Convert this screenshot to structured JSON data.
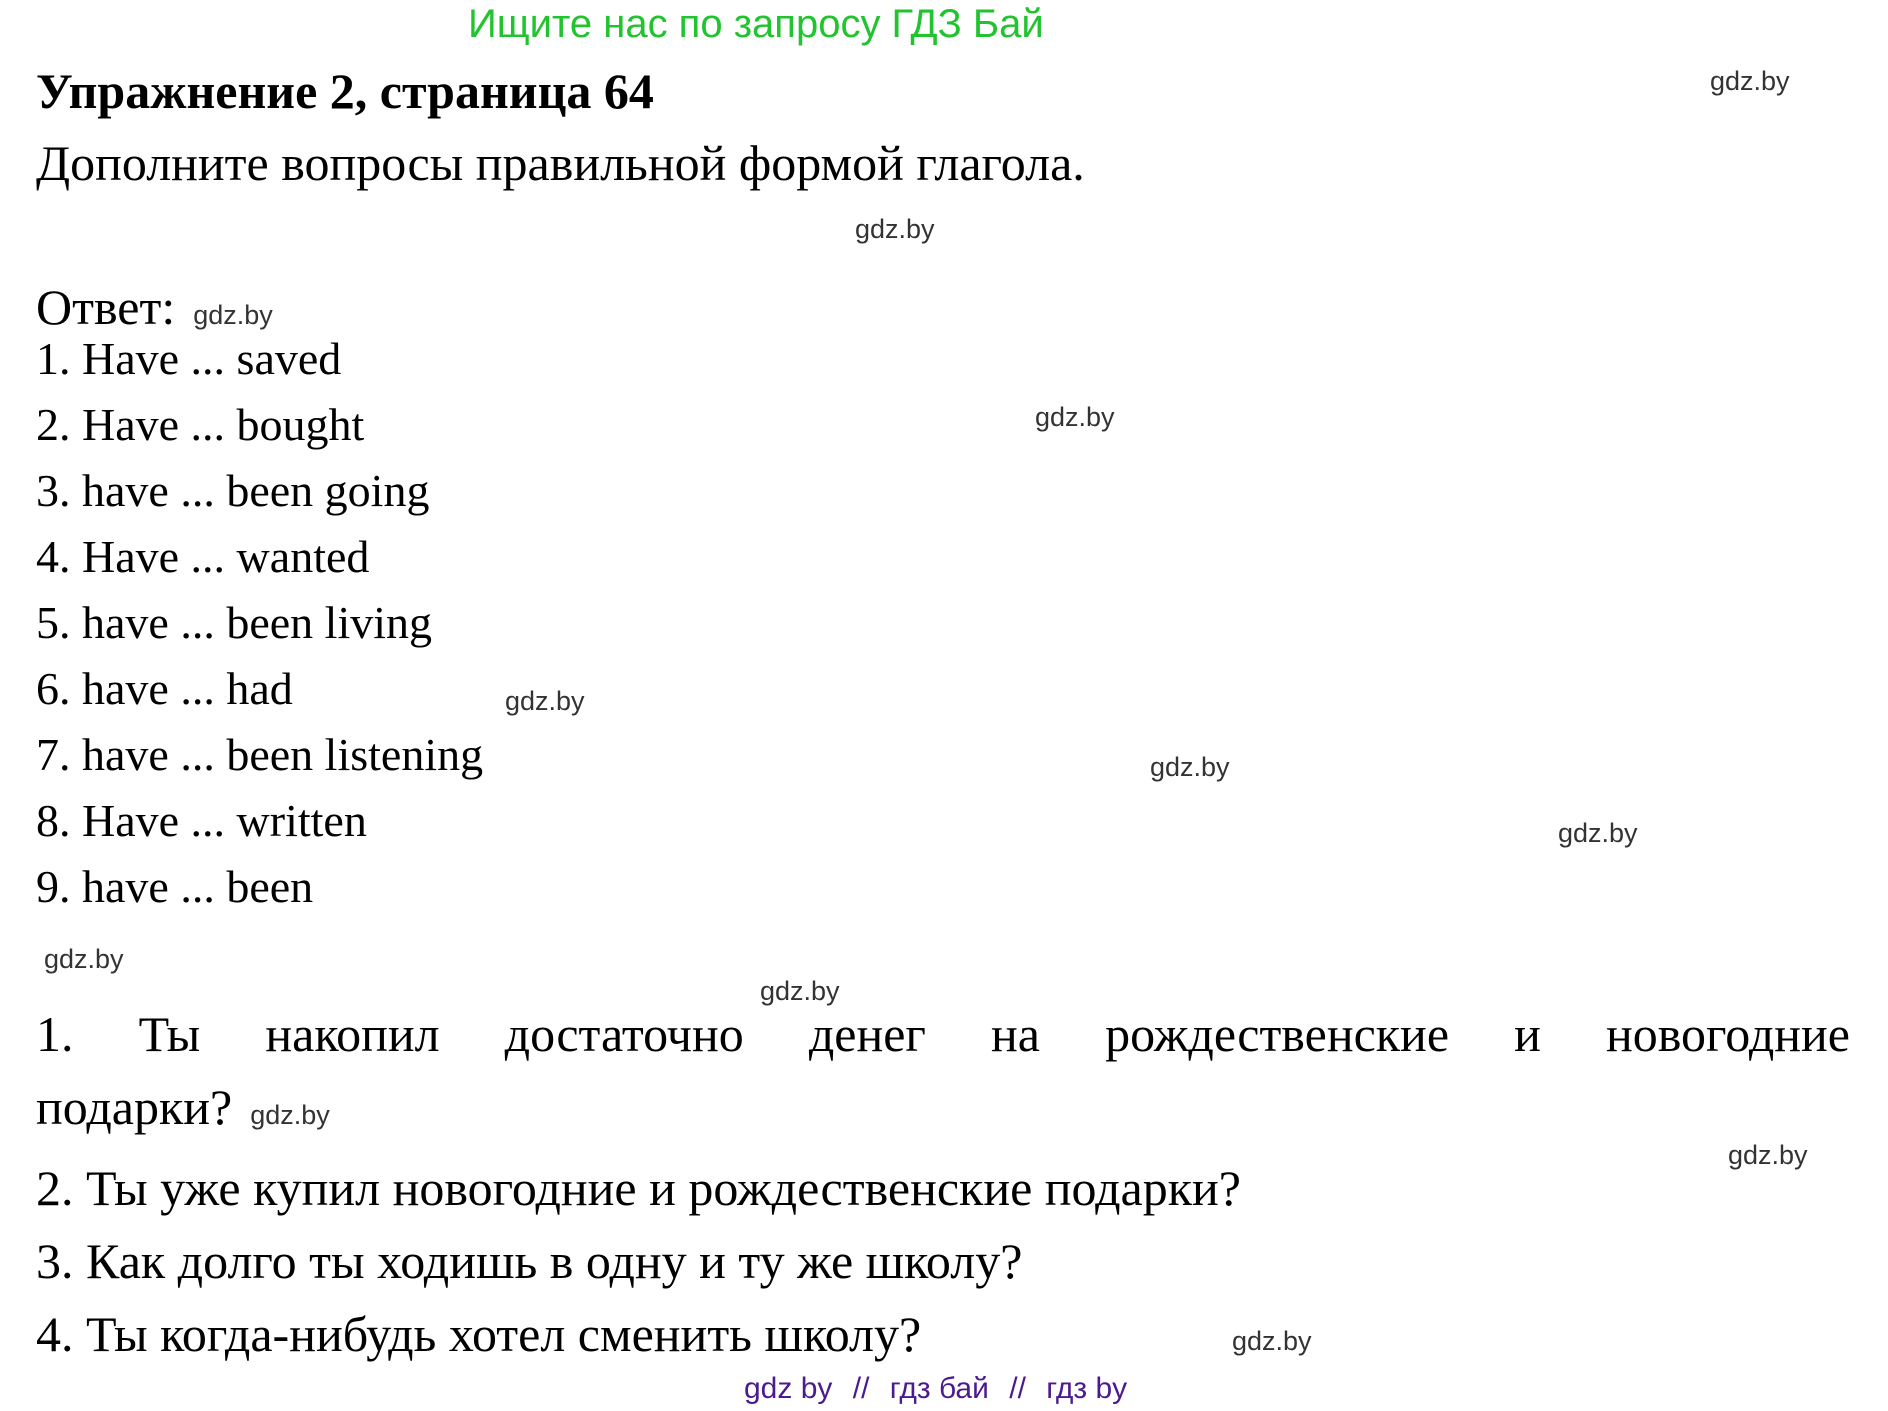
{
  "promo": {
    "text": "Ищите нас по запросу ГДЗ Бай",
    "color": "#21c32e"
  },
  "watermark": {
    "text": "gdz.by",
    "color": "#333333"
  },
  "exercise": {
    "title": "Упражнение 2, страница 64",
    "task": "Дополните вопросы правильной формой глагола.",
    "answer_label": "Ответ:"
  },
  "answers": [
    "1. Have ... saved",
    "2. Have ... bought",
    "3. have ... been going",
    "4. Have ... wanted",
    "5. have ... been living",
    "6. have ... had",
    "7. have ... been listening",
    "8. Have ... written",
    "9. have ... been"
  ],
  "questions": {
    "q1_line1": "1. Ты накопил достаточно денег на рождественские и новогодние",
    "q1_line2": "подарки?",
    "q2": "2. Ты уже купил новогодние и рождественские подарки?",
    "q3": "3. Как долго ты ходишь в одну и ту же школу?",
    "q4": "4. Ты когда-нибудь хотел сменить школу?"
  },
  "footer": {
    "separator": "//",
    "items": [
      "gdz by",
      "гдз бай",
      "гдз by"
    ],
    "color": "#4b1a8e"
  }
}
